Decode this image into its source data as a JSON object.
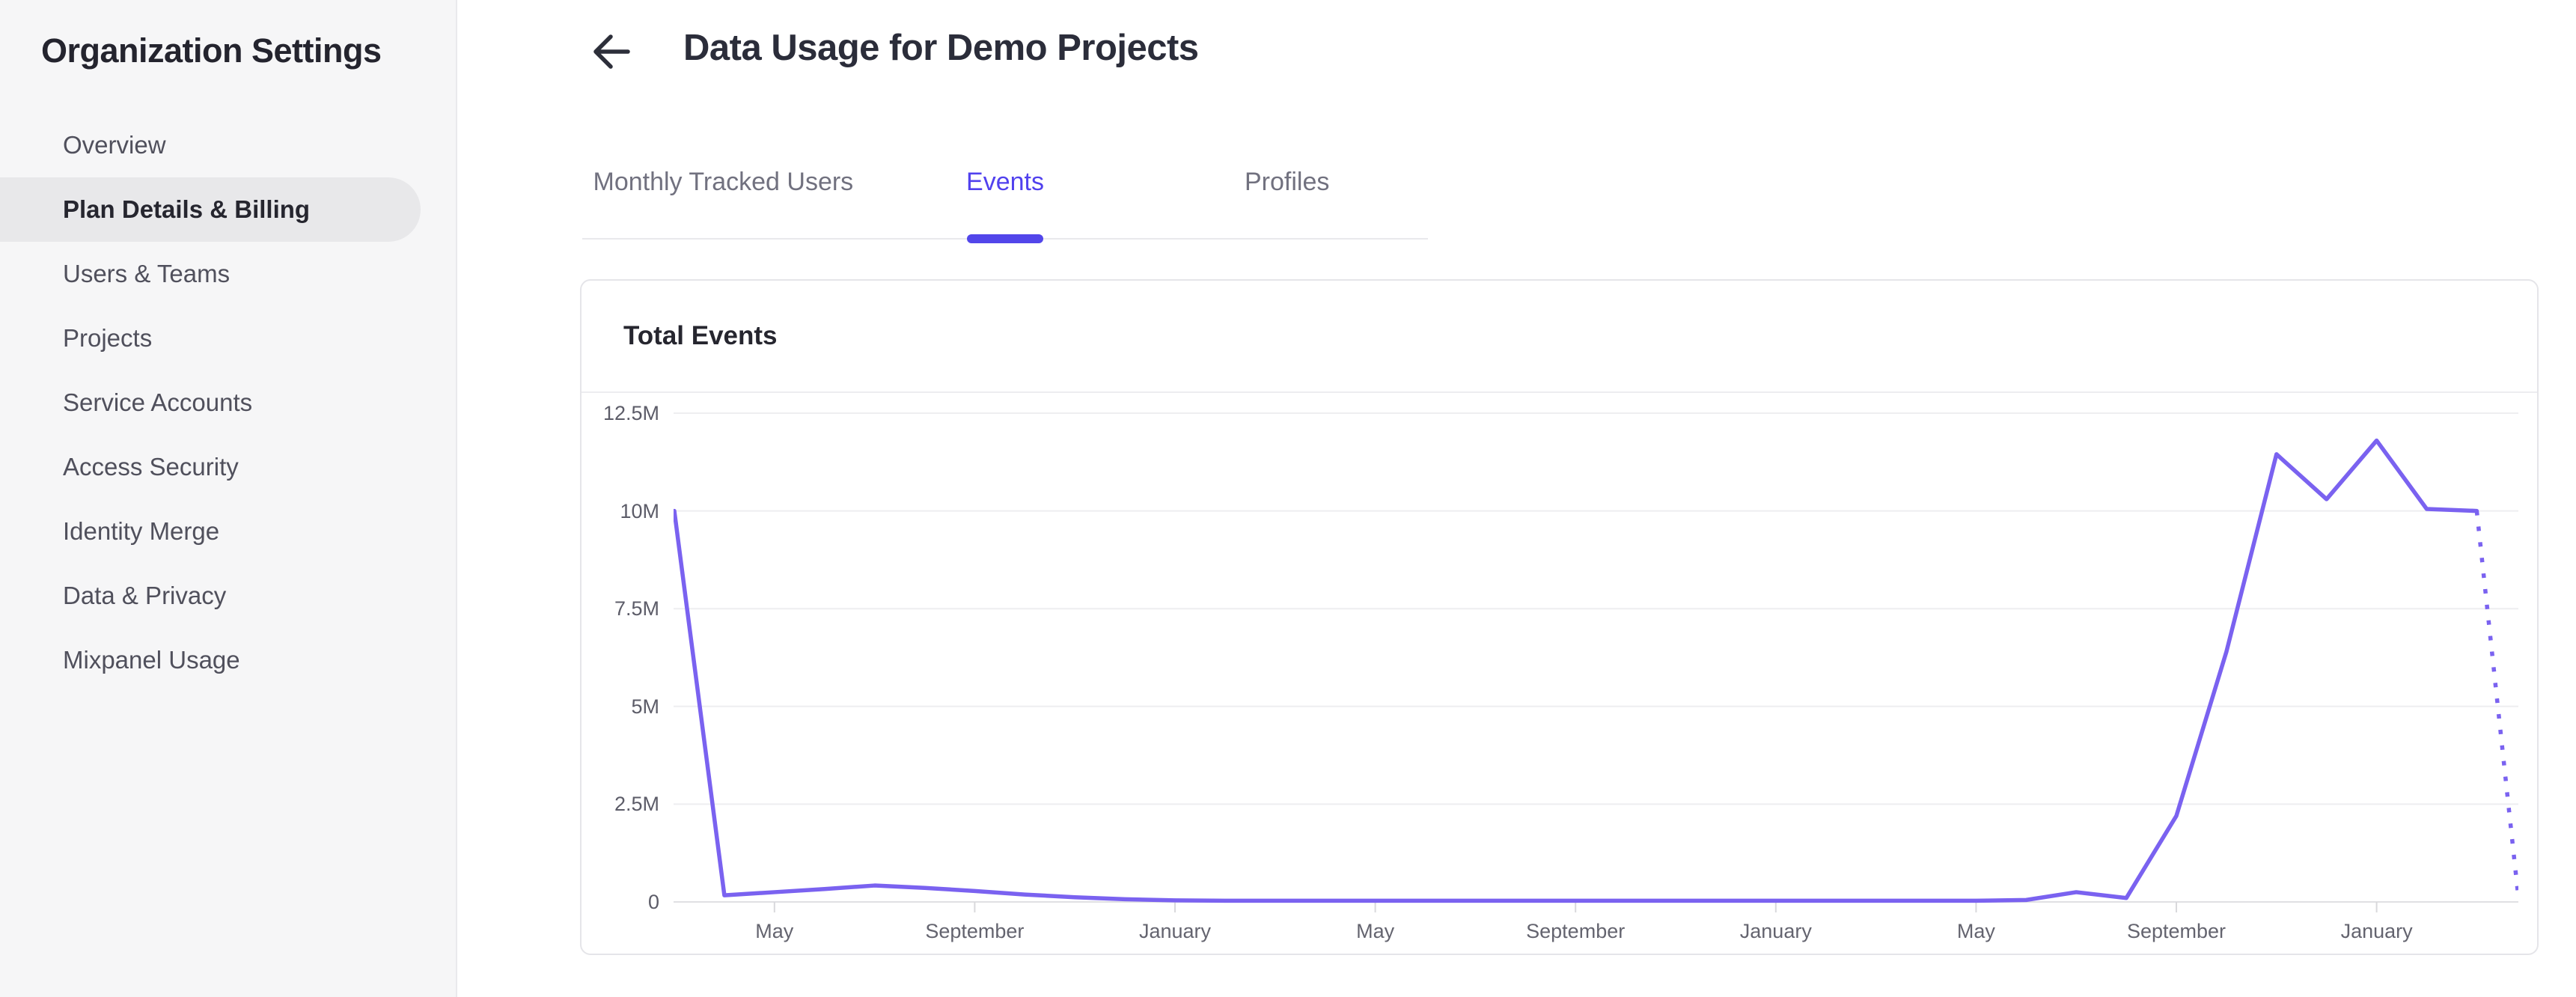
{
  "sidebar": {
    "title": "Organization Settings",
    "items": [
      {
        "label": "Overview",
        "active": false
      },
      {
        "label": "Plan Details & Billing",
        "active": true
      },
      {
        "label": "Users & Teams",
        "active": false
      },
      {
        "label": "Projects",
        "active": false
      },
      {
        "label": "Service Accounts",
        "active": false
      },
      {
        "label": "Access Security",
        "active": false
      },
      {
        "label": "Identity Merge",
        "active": false
      },
      {
        "label": "Data & Privacy",
        "active": false
      },
      {
        "label": "Mixpanel Usage",
        "active": false
      }
    ]
  },
  "header": {
    "title": "Data Usage for Demo Projects",
    "back_icon": "left-arrow"
  },
  "tabs": [
    {
      "label": "Monthly Tracked Users",
      "active": false
    },
    {
      "label": "Events",
      "active": true
    },
    {
      "label": "Profiles",
      "active": false
    }
  ],
  "card": {
    "title": "Total Events"
  },
  "colors": {
    "accent": "#5246ea",
    "active_tab_text": "#5141ee",
    "chart_line": "#7a62f0",
    "gridline": "#eeeef0",
    "baseline": "#e0e0e3",
    "tick": "#d9d9dc",
    "sidebar_bg": "#f6f6f7",
    "selected_pill": "#e8e8ea"
  },
  "chart_data": {
    "type": "line",
    "title": "Total Events",
    "ylabel": "",
    "xlabel": "",
    "y_tick_labels": [
      "12.5M",
      "10M",
      "7.5M",
      "5M",
      "2.5M",
      "0"
    ],
    "y_max_millions": 12.5,
    "grid": true,
    "legend": false,
    "line_color": "#7a62f0",
    "last_segment_dotted": true,
    "x_tick_labels": [
      "May",
      "September",
      "January",
      "May",
      "September",
      "January",
      "May",
      "September",
      "January"
    ],
    "x_tick_indices": [
      2,
      6,
      10,
      14,
      18,
      22,
      26,
      30,
      34
    ],
    "months": [
      "Mar Y1",
      "Apr Y1",
      "May Y1",
      "Jun Y1",
      "Jul Y1",
      "Aug Y1",
      "Sep Y1",
      "Oct Y1",
      "Nov Y1",
      "Dec Y1",
      "Jan Y2",
      "Feb Y2",
      "Mar Y2",
      "Apr Y2",
      "May Y2",
      "Jun Y2",
      "Jul Y2",
      "Aug Y2",
      "Sep Y2",
      "Oct Y2",
      "Nov Y2",
      "Dec Y2",
      "Jan Y3",
      "Feb Y3",
      "Mar Y3",
      "Apr Y3",
      "May Y3",
      "Jun Y3",
      "Jul Y3",
      "Aug Y3",
      "Sep Y3",
      "Oct Y3",
      "Nov Y3",
      "Dec Y3",
      "Jan Y4",
      "Feb Y4",
      "Mar Y4",
      "Apr Y4"
    ],
    "values_millions": [
      10,
      0.17,
      0.25,
      0.33,
      0.42,
      0.36,
      0.28,
      0.19,
      0.12,
      0.07,
      0.04,
      0.03,
      0.03,
      0.03,
      0.03,
      0.03,
      0.03,
      0.03,
      0.03,
      0.03,
      0.03,
      0.03,
      0.03,
      0.03,
      0.03,
      0.03,
      0.03,
      0.05,
      0.25,
      0.1,
      2.2,
      6.4,
      11.45,
      10.3,
      11.8,
      10.05,
      10.0,
      0.3
    ]
  }
}
